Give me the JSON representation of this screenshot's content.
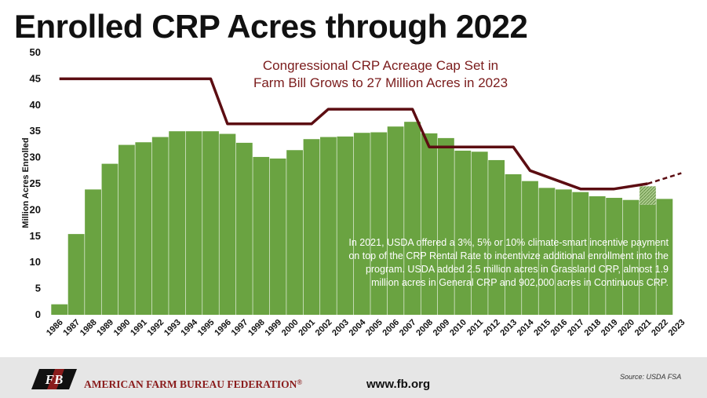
{
  "page": {
    "title": "Enrolled CRP Acres through 2022",
    "annotation_line1": "Congressional CRP Acreage Cap Set in",
    "annotation_line2": "Farm Bill Grows to 27 Million Acres in 2023",
    "note": "In 2021, USDA offered a 3%, 5% or 10% climate-smart incentive payment on top of the CRP Rental Rate to incentivize additional enrollment into the program. USDA added 2.5 million acres in Grassland CRP, almost 1.9 million acres in General CRP and 902,000 acres in Continuous CRP.",
    "footer_org": "AMERICAN FARM BUREAU FEDERATION",
    "footer_reg": "®",
    "footer_url": "www.fb.org",
    "source": "Source: USDA FSA",
    "logo_text": "FB"
  },
  "colors": {
    "bars": "#6aa341",
    "bar_2021_increment": "#a9c98a",
    "cap_line": "#5c0d12",
    "footer_bg": "#e6e6e6",
    "brand_red": "#8a1c1c"
  },
  "chart_data": {
    "type": "bar",
    "title": "Enrolled CRP Acres through 2022",
    "ylabel": "Million Acres Enrolled",
    "xlabel": "",
    "ylim": [
      0,
      50
    ],
    "yticks": [
      0,
      5,
      10,
      15,
      20,
      25,
      30,
      35,
      40,
      45,
      50
    ],
    "grid": false,
    "categories": [
      "1986",
      "1987",
      "1988",
      "1989",
      "1990",
      "1991",
      "1992",
      "1993",
      "1994",
      "1995",
      "1996",
      "1997",
      "1998",
      "1999",
      "2000",
      "2001",
      "2002",
      "2003",
      "2004",
      "2005",
      "2006",
      "2007",
      "2008",
      "2009",
      "2010",
      "2011",
      "2012",
      "2013",
      "2014",
      "2015",
      "2016",
      "2017",
      "2018",
      "2019",
      "2020",
      "2021",
      "2022",
      "2023"
    ],
    "series": [
      {
        "name": "Enrolled CRP Acres",
        "values": [
          2.0,
          15.4,
          23.9,
          28.8,
          32.4,
          32.9,
          33.9,
          35.0,
          35.0,
          35.0,
          34.5,
          32.8,
          30.1,
          29.8,
          31.4,
          33.5,
          33.9,
          34.0,
          34.7,
          34.8,
          35.9,
          36.8,
          34.6,
          33.7,
          31.3,
          31.1,
          29.5,
          26.8,
          25.5,
          24.2,
          23.9,
          23.4,
          22.6,
          22.3,
          21.9,
          24.5,
          22.1,
          null
        ],
        "note": "2021 includes a hatched increment from 21.0 to 24.5"
      },
      {
        "name": "Congressional CRP Acreage Cap",
        "kind": "step-line",
        "points": [
          [
            "1986",
            45
          ],
          [
            "1995",
            45
          ],
          [
            "1996",
            36.4
          ],
          [
            "2001",
            36.4
          ],
          [
            "2002",
            39.2
          ],
          [
            "2007",
            39.2
          ],
          [
            "2008",
            32.0
          ],
          [
            "2013",
            32.0
          ],
          [
            "2014",
            27.5
          ],
          [
            "2017",
            24.0
          ],
          [
            "2019",
            24.0
          ],
          [
            "2021",
            25.0
          ]
        ],
        "projected_points": [
          [
            "2021",
            25.0
          ],
          [
            "2023",
            27.0
          ]
        ]
      }
    ],
    "hatched_increment_2021": [
      21.0,
      24.5
    ],
    "annotations": [
      "Congressional CRP Acreage Cap Set in Farm Bill Grows to 27 Million Acres in 2023",
      "In 2021, USDA offered a 3%, 5% or 10% climate-smart incentive payment on top of the CRP Rental Rate to incentivize additional enrollment into the program. USDA added 2.5 million acres in Grassland CRP, almost 1.9 million acres in General CRP and 902,000 acres in Continuous CRP."
    ]
  }
}
